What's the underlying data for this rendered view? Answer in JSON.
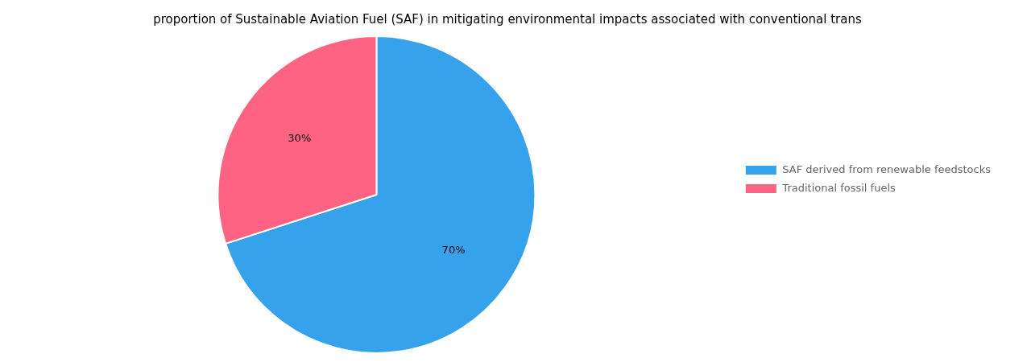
{
  "chart_data": {
    "type": "pie",
    "title": "proportion of Sustainable Aviation Fuel (SAF) in mitigating environmental impacts associated with conventional trans",
    "categories": [
      "SAF derived from renewable feedstocks",
      "Traditional fossil fuels"
    ],
    "values": [
      70,
      30
    ],
    "value_labels": [
      "70%",
      "30%"
    ],
    "data_labels": true,
    "legend": "right"
  }
}
